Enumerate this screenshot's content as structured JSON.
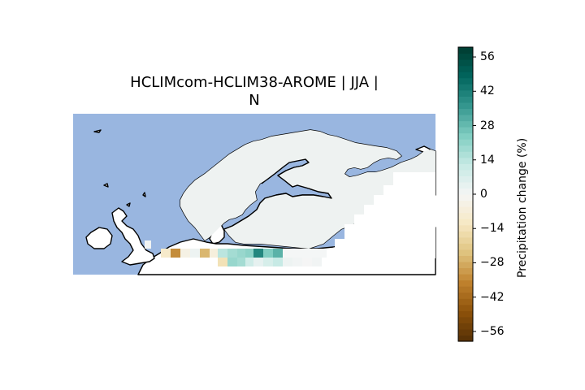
{
  "title": {
    "line1": "HCLIMcom-HCLIM38-AROME | JJA |",
    "line2": "N"
  },
  "colorbar": {
    "label": "Precipitation change (%)",
    "min": -60,
    "max": 60,
    "ticks": [
      "56",
      "42",
      "28",
      "14",
      "0",
      "−14",
      "−28",
      "−42",
      "−56"
    ],
    "tick_values": [
      56,
      42,
      28,
      14,
      0,
      -14,
      -28,
      -42,
      -56
    ],
    "colormap": "BrBG",
    "colors": [
      "#543005",
      "#8c510a",
      "#bf812d",
      "#dfc27d",
      "#f6e8c3",
      "#f5f5f5",
      "#c7eae5",
      "#80cdc1",
      "#35978f",
      "#01665e",
      "#003c30"
    ]
  },
  "map": {
    "ocean_color": "#99b6e0",
    "land_fill_color": "#ffffff",
    "coastline_color": "#000000",
    "region": "Northern Europe / Scandinavia"
  }
}
